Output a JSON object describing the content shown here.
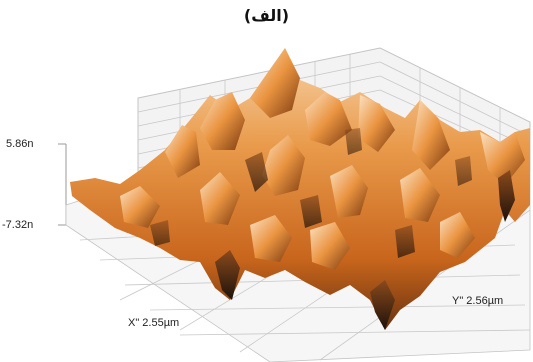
{
  "figure": {
    "title": "(الف)",
    "z_max_label": "5.86n",
    "z_min_label": "-7.32n",
    "x_axis_label": "X\" 2.55µm",
    "y_axis_label": "Y\" 2.56µm"
  },
  "colors": {
    "surface_light": "#f6c48e",
    "surface_mid": "#e08a3a",
    "surface_dark": "#3a2210",
    "grid_line": "#b9b9b9",
    "wall_fill": "#f2f2f2"
  }
}
